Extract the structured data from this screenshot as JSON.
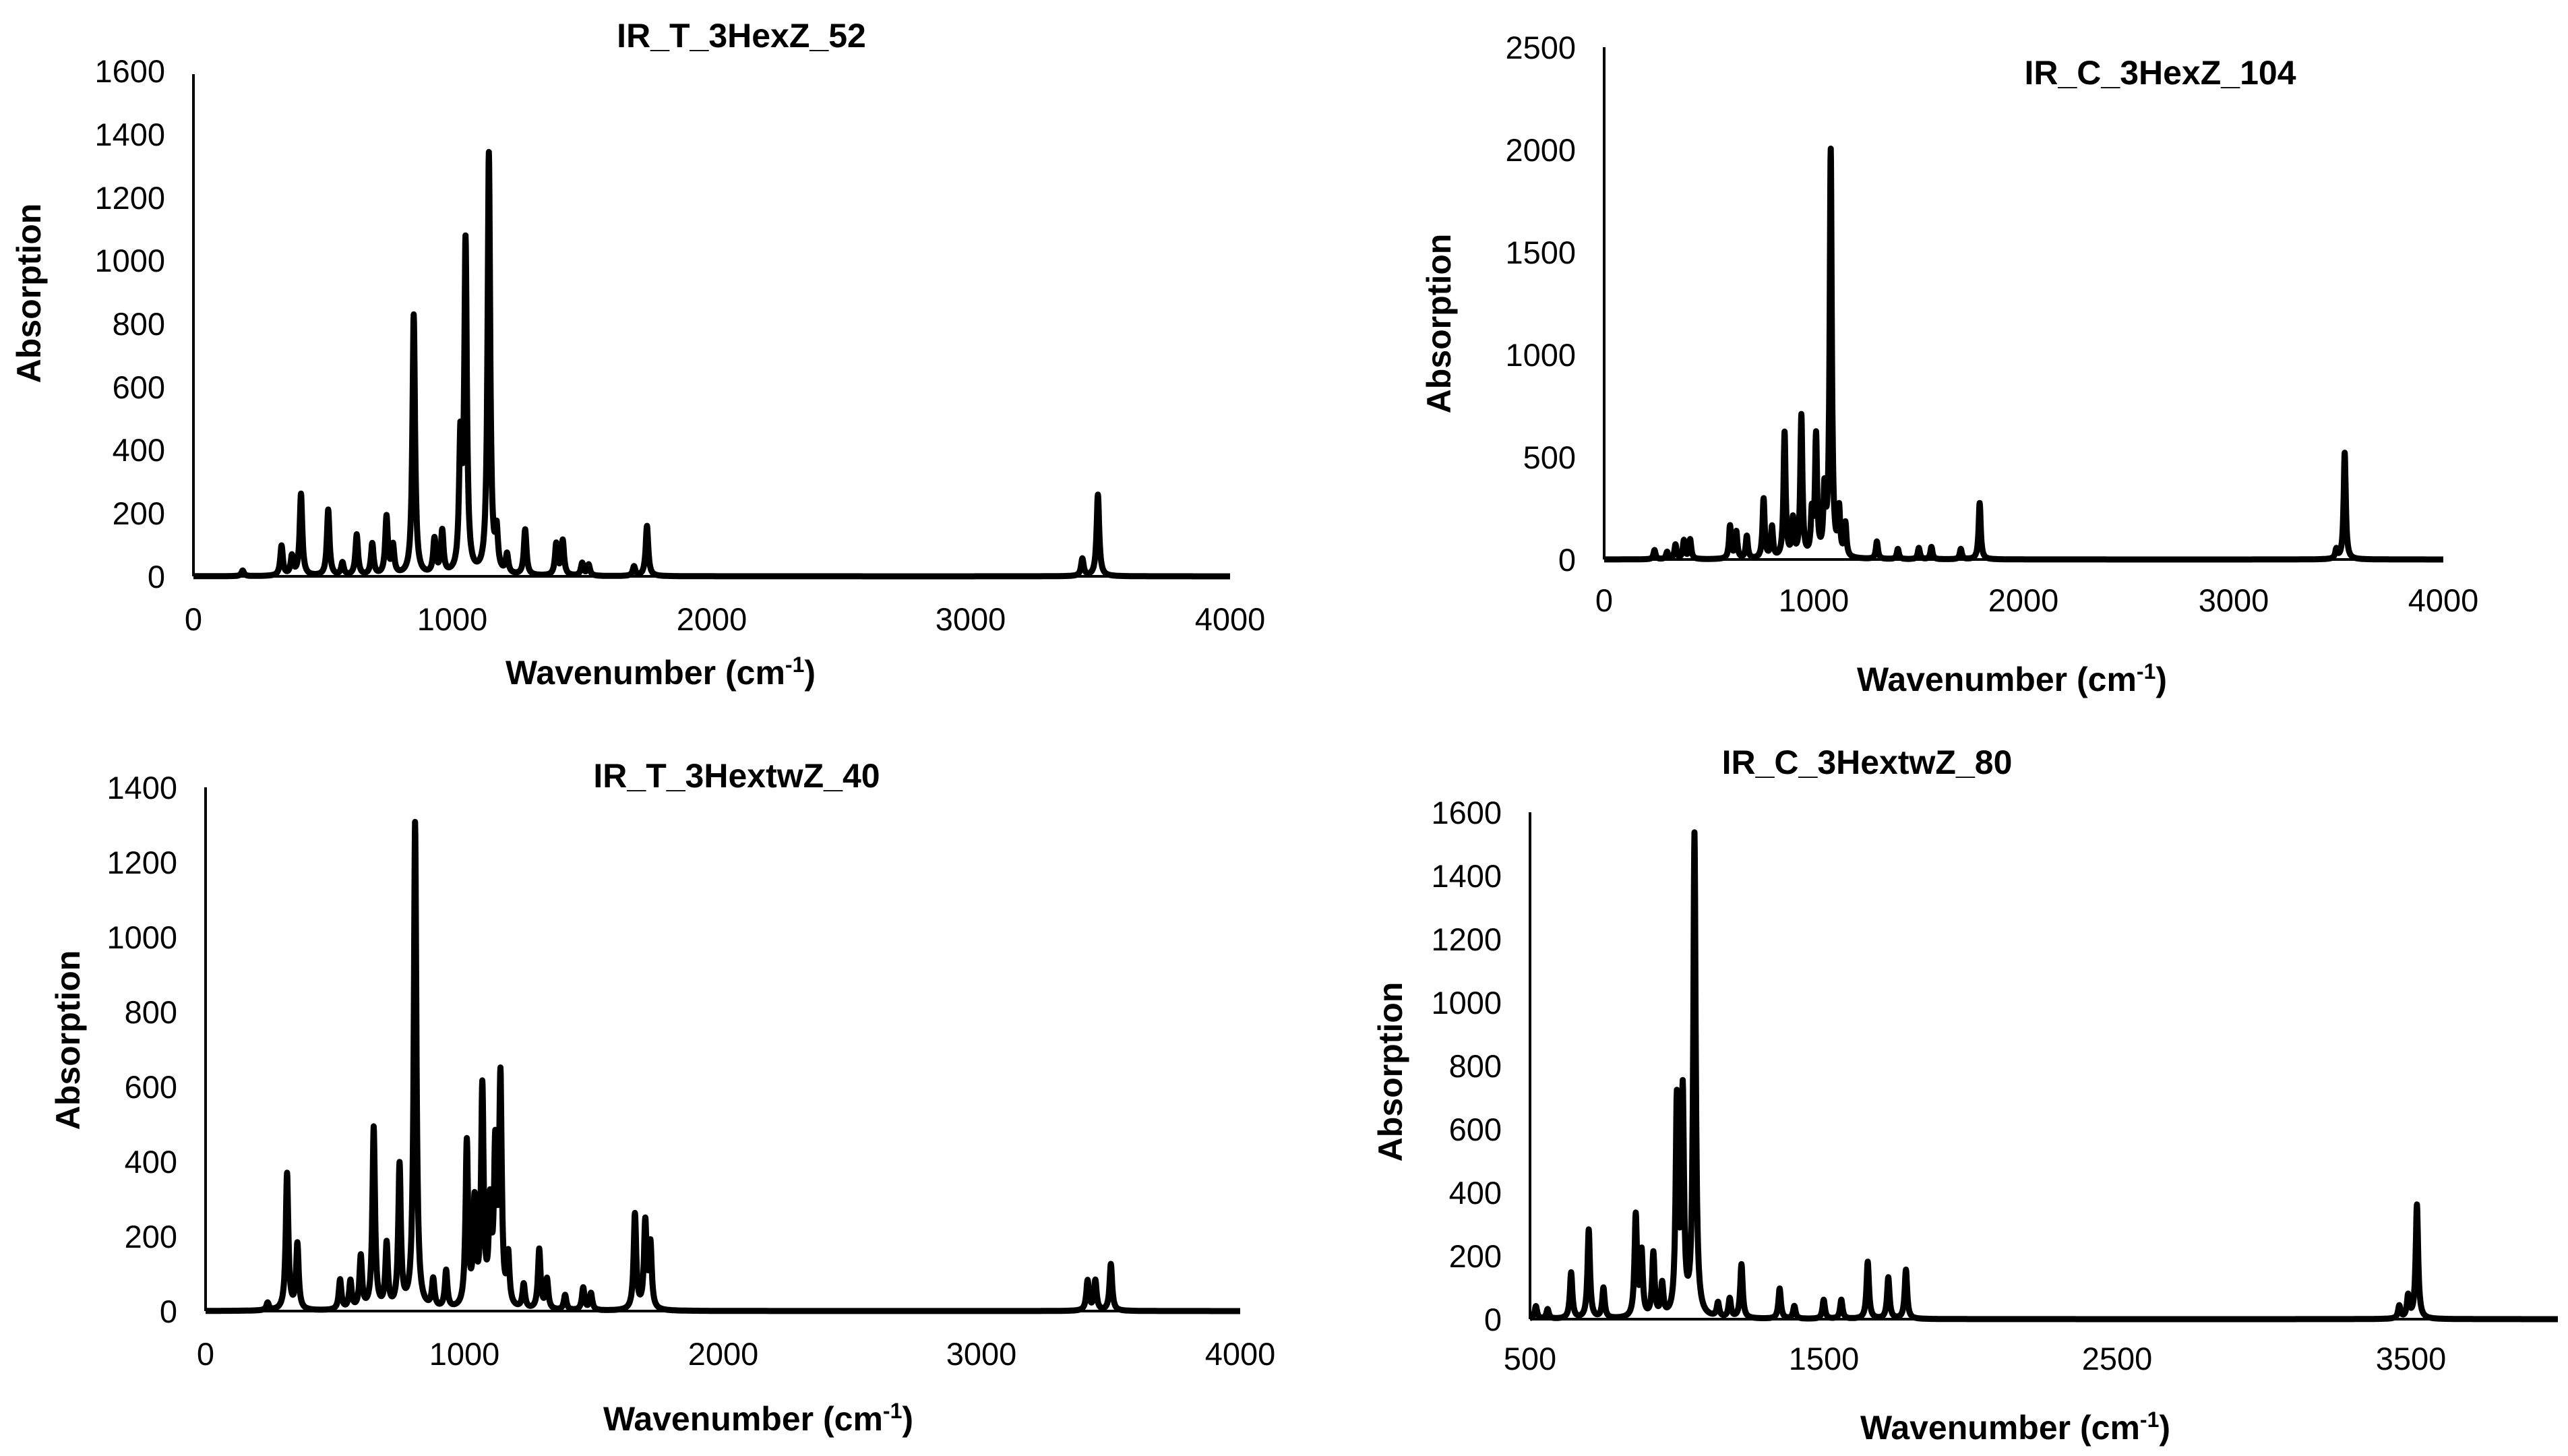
{
  "chart_data": [
    {
      "type": "line",
      "title": "IR_T_3HexZ_52",
      "xlabel": "Wavenumber (cm",
      "xlabel_sup": "-1",
      "xlabel_end": ")",
      "ylabel": "Absorption",
      "xlim": [
        0,
        4000
      ],
      "ylim": [
        0,
        1600
      ],
      "xticks": [
        0,
        1000,
        2000,
        3000,
        4000
      ],
      "yticks": [
        0,
        200,
        400,
        600,
        800,
        1000,
        1200,
        1400,
        1600
      ],
      "peak_width": 6,
      "peaks": [
        [
          190,
          18
        ],
        [
          340,
          95
        ],
        [
          380,
          60
        ],
        [
          415,
          260
        ],
        [
          520,
          210
        ],
        [
          575,
          40
        ],
        [
          630,
          130
        ],
        [
          690,
          100
        ],
        [
          745,
          185
        ],
        [
          770,
          90
        ],
        [
          850,
          830
        ],
        [
          930,
          110
        ],
        [
          960,
          135
        ],
        [
          1030,
          400
        ],
        [
          1050,
          1045
        ],
        [
          1140,
          1340
        ],
        [
          1170,
          120
        ],
        [
          1210,
          60
        ],
        [
          1280,
          145
        ],
        [
          1400,
          100
        ],
        [
          1425,
          110
        ],
        [
          1500,
          40
        ],
        [
          1525,
          35
        ],
        [
          1700,
          30
        ],
        [
          1750,
          160
        ],
        [
          3430,
          55
        ],
        [
          3490,
          260
        ]
      ]
    },
    {
      "type": "line",
      "title": "IR_C_3HexZ_104",
      "xlabel": "Wavenumber (cm",
      "xlabel_sup": "-1",
      "xlabel_end": ")",
      "ylabel": "Absorption",
      "xlim": [
        0,
        4000
      ],
      "ylim": [
        0,
        2500
      ],
      "xticks": [
        0,
        1000,
        2000,
        3000,
        4000
      ],
      "yticks": [
        0,
        500,
        1000,
        1500,
        2000,
        2500
      ],
      "peak_width": 6,
      "peaks": [
        [
          240,
          45
        ],
        [
          300,
          35
        ],
        [
          340,
          70
        ],
        [
          380,
          90
        ],
        [
          410,
          95
        ],
        [
          600,
          160
        ],
        [
          630,
          130
        ],
        [
          680,
          110
        ],
        [
          760,
          290
        ],
        [
          800,
          150
        ],
        [
          860,
          610
        ],
        [
          900,
          180
        ],
        [
          940,
          690
        ],
        [
          990,
          200
        ],
        [
          1010,
          580
        ],
        [
          1050,
          300
        ],
        [
          1080,
          1980
        ],
        [
          1120,
          220
        ],
        [
          1150,
          160
        ],
        [
          1300,
          85
        ],
        [
          1400,
          50
        ],
        [
          1500,
          55
        ],
        [
          1560,
          60
        ],
        [
          1700,
          50
        ],
        [
          1790,
          275
        ],
        [
          3490,
          45
        ],
        [
          3530,
          520
        ]
      ]
    },
    {
      "type": "line",
      "title": "IR_T_3HextwZ_40",
      "xlabel": "Wavenumber (cm",
      "xlabel_sup": "-1",
      "xlabel_end": ")",
      "ylabel": "Absorption",
      "xlim": [
        0,
        4000
      ],
      "ylim": [
        0,
        1400
      ],
      "xticks": [
        0,
        1000,
        2000,
        3000,
        4000
      ],
      "yticks": [
        0,
        200,
        400,
        600,
        800,
        1000,
        1200,
        1400
      ],
      "peak_width": 6,
      "peaks": [
        [
          240,
          20
        ],
        [
          315,
          365
        ],
        [
          355,
          175
        ],
        [
          520,
          80
        ],
        [
          560,
          75
        ],
        [
          600,
          140
        ],
        [
          650,
          485
        ],
        [
          700,
          170
        ],
        [
          750,
          380
        ],
        [
          810,
          1300
        ],
        [
          880,
          75
        ],
        [
          930,
          100
        ],
        [
          1010,
          440
        ],
        [
          1040,
          270
        ],
        [
          1070,
          580
        ],
        [
          1100,
          250
        ],
        [
          1120,
          400
        ],
        [
          1140,
          600
        ],
        [
          1170,
          130
        ],
        [
          1230,
          65
        ],
        [
          1290,
          160
        ],
        [
          1320,
          80
        ],
        [
          1390,
          40
        ],
        [
          1460,
          60
        ],
        [
          1490,
          45
        ],
        [
          1660,
          255
        ],
        [
          1700,
          230
        ],
        [
          1720,
          170
        ],
        [
          3410,
          80
        ],
        [
          3440,
          80
        ],
        [
          3500,
          125
        ]
      ]
    },
    {
      "type": "line",
      "title": "IR_C_3HextwZ_80",
      "xlabel": "Wavenumber (cm",
      "xlabel_sup": "-1",
      "xlabel_end": ")",
      "ylabel": "Absorption",
      "xlim": [
        500,
        4000
      ],
      "ylim": [
        0,
        1600
      ],
      "xticks": [
        500,
        1500,
        2500,
        3500
      ],
      "yticks": [
        0,
        200,
        400,
        600,
        800,
        1000,
        1200,
        1400,
        1600
      ],
      "peak_width": 5,
      "peaks": [
        [
          520,
          40
        ],
        [
          560,
          30
        ],
        [
          640,
          145
        ],
        [
          700,
          280
        ],
        [
          750,
          95
        ],
        [
          860,
          320
        ],
        [
          880,
          200
        ],
        [
          920,
          200
        ],
        [
          950,
          100
        ],
        [
          1000,
          670
        ],
        [
          1020,
          690
        ],
        [
          1060,
          1520
        ],
        [
          1140,
          45
        ],
        [
          1180,
          60
        ],
        [
          1220,
          170
        ],
        [
          1350,
          95
        ],
        [
          1400,
          40
        ],
        [
          1500,
          60
        ],
        [
          1560,
          60
        ],
        [
          1650,
          180
        ],
        [
          1720,
          130
        ],
        [
          1780,
          155
        ],
        [
          3460,
          40
        ],
        [
          3490,
          70
        ],
        [
          3520,
          360
        ]
      ]
    }
  ]
}
